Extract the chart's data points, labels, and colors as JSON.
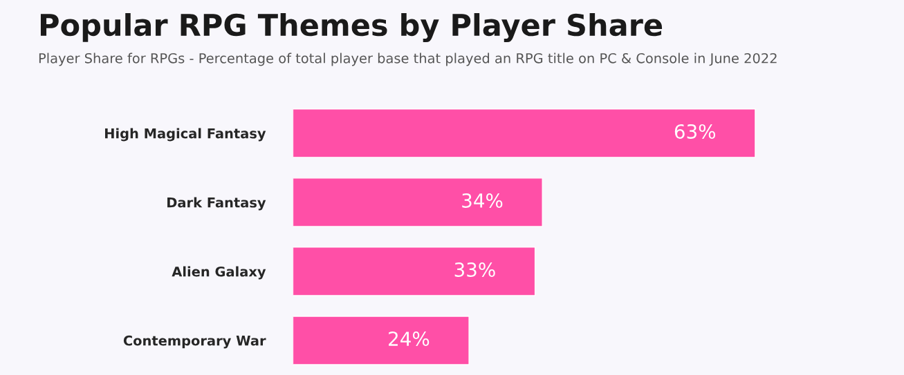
{
  "chart_data": {
    "type": "bar",
    "orientation": "horizontal",
    "title": "Popular RPG Themes by Player Share",
    "subtitle": "Player Share for RPGs - Percentage of total player base that played an RPG title on PC & Console in June 2022",
    "categories": [
      "High Magical Fantasy",
      "Dark Fantasy",
      "Alien Galaxy",
      "Contemporary War"
    ],
    "values": [
      63,
      34,
      33,
      24
    ],
    "value_labels": [
      "63%",
      "34%",
      "33%",
      "24%"
    ],
    "color": "#ff4fa7",
    "tick_labels": "y",
    "grid": false,
    "legend": false
  }
}
